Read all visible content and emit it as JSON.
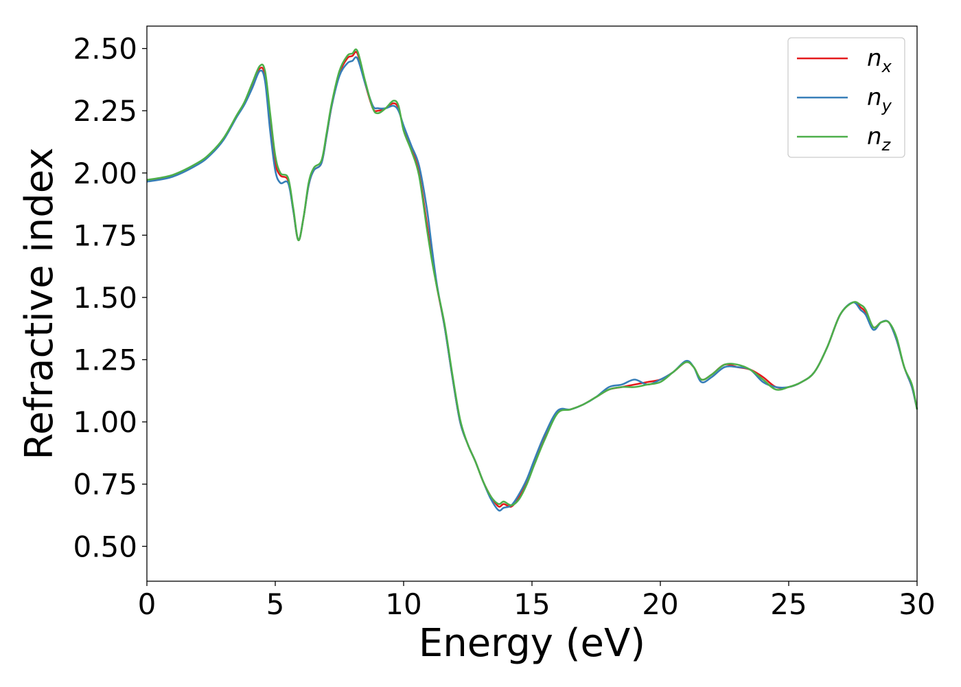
{
  "chart_data": {
    "type": "line",
    "xlabel": "Energy (eV)",
    "ylabel": "Refractive index",
    "xlim": [
      0,
      30
    ],
    "ylim": [
      0.36,
      2.59
    ],
    "xticks": [
      "0",
      "5",
      "10",
      "15",
      "20",
      "25",
      "30"
    ],
    "yticks": [
      "0.50",
      "0.75",
      "1.00",
      "1.25",
      "1.50",
      "1.75",
      "2.00",
      "2.25",
      "2.50"
    ],
    "grid": false,
    "legend_position": "top-right",
    "series": [
      {
        "name": "n",
        "subscript": "x",
        "color": "#e41a1c",
        "x": [
          0,
          1,
          2,
          2.5,
          3,
          3.5,
          3.8,
          4.1,
          4.4,
          4.6,
          4.8,
          5.0,
          5.2,
          5.5,
          5.7,
          5.9,
          6.1,
          6.3,
          6.5,
          6.8,
          7.0,
          7.2,
          7.5,
          7.8,
          8.0,
          8.2,
          8.5,
          8.8,
          9.0,
          9.3,
          9.6,
          9.8,
          10.0,
          10.3,
          10.6,
          10.9,
          11.1,
          11.3,
          11.6,
          11.9,
          12.2,
          12.5,
          12.8,
          13.1,
          13.4,
          13.7,
          13.9,
          14.2,
          14.5,
          14.8,
          15.1,
          15.5,
          16.0,
          16.5,
          17.0,
          17.5,
          18.0,
          18.5,
          19.0,
          19.5,
          20.0,
          20.5,
          21.0,
          21.3,
          21.6,
          22.0,
          22.5,
          23.0,
          23.5,
          24.0,
          24.5,
          25.0,
          25.5,
          26.0,
          26.5,
          27.0,
          27.5,
          27.8,
          28.0,
          28.3,
          28.6,
          28.9,
          29.2,
          29.5,
          29.8,
          30.0
        ],
        "values": [
          1.97,
          1.99,
          2.04,
          2.08,
          2.14,
          2.23,
          2.28,
          2.35,
          2.42,
          2.39,
          2.2,
          2.04,
          1.99,
          1.97,
          1.85,
          1.73,
          1.82,
          1.95,
          2.01,
          2.04,
          2.15,
          2.27,
          2.4,
          2.46,
          2.47,
          2.48,
          2.36,
          2.26,
          2.25,
          2.26,
          2.28,
          2.26,
          2.18,
          2.1,
          2.0,
          1.8,
          1.66,
          1.54,
          1.38,
          1.18,
          1.0,
          0.91,
          0.84,
          0.76,
          0.7,
          0.66,
          0.67,
          0.66,
          0.7,
          0.76,
          0.84,
          0.94,
          1.04,
          1.05,
          1.07,
          1.1,
          1.13,
          1.14,
          1.15,
          1.16,
          1.17,
          1.2,
          1.24,
          1.22,
          1.17,
          1.19,
          1.23,
          1.22,
          1.21,
          1.18,
          1.14,
          1.14,
          1.16,
          1.2,
          1.3,
          1.43,
          1.48,
          1.46,
          1.44,
          1.38,
          1.4,
          1.4,
          1.33,
          1.22,
          1.14,
          1.05
        ]
      },
      {
        "name": "n",
        "subscript": "y",
        "color": "#377eb8",
        "x": [
          0,
          1,
          2,
          2.5,
          3,
          3.5,
          3.8,
          4.1,
          4.4,
          4.6,
          4.8,
          5.0,
          5.2,
          5.5,
          5.7,
          5.9,
          6.1,
          6.3,
          6.5,
          6.8,
          7.0,
          7.2,
          7.5,
          7.8,
          8.0,
          8.2,
          8.5,
          8.8,
          9.0,
          9.3,
          9.6,
          9.8,
          10.0,
          10.3,
          10.6,
          10.9,
          11.1,
          11.3,
          11.6,
          11.9,
          12.2,
          12.5,
          12.8,
          13.1,
          13.4,
          13.7,
          13.9,
          14.2,
          14.5,
          14.8,
          15.1,
          15.5,
          16.0,
          16.5,
          17.0,
          17.5,
          18.0,
          18.5,
          19.0,
          19.5,
          20.0,
          20.5,
          21.0,
          21.3,
          21.6,
          22.0,
          22.5,
          23.0,
          23.5,
          24.0,
          24.5,
          25.0,
          25.5,
          26.0,
          26.5,
          27.0,
          27.5,
          27.8,
          28.0,
          28.3,
          28.6,
          28.9,
          29.2,
          29.5,
          29.8,
          30.0
        ],
        "values": [
          1.965,
          1.985,
          2.035,
          2.075,
          2.135,
          2.225,
          2.275,
          2.34,
          2.41,
          2.37,
          2.17,
          2.01,
          1.96,
          1.96,
          1.85,
          1.73,
          1.82,
          1.95,
          2.01,
          2.04,
          2.15,
          2.27,
          2.39,
          2.44,
          2.45,
          2.46,
          2.36,
          2.27,
          2.26,
          2.26,
          2.27,
          2.25,
          2.19,
          2.11,
          2.03,
          1.86,
          1.7,
          1.55,
          1.38,
          1.18,
          1.0,
          0.91,
          0.84,
          0.76,
          0.69,
          0.645,
          0.655,
          0.665,
          0.71,
          0.77,
          0.85,
          0.95,
          1.045,
          1.05,
          1.07,
          1.1,
          1.14,
          1.15,
          1.17,
          1.15,
          1.17,
          1.2,
          1.245,
          1.22,
          1.16,
          1.18,
          1.22,
          1.22,
          1.21,
          1.16,
          1.14,
          1.14,
          1.16,
          1.2,
          1.3,
          1.43,
          1.48,
          1.45,
          1.43,
          1.37,
          1.4,
          1.4,
          1.33,
          1.22,
          1.14,
          1.05
        ]
      },
      {
        "name": "n",
        "subscript": "z",
        "color": "#4daf4a",
        "x": [
          0,
          1,
          2,
          2.5,
          3,
          3.5,
          3.8,
          4.1,
          4.4,
          4.6,
          4.8,
          5.0,
          5.2,
          5.5,
          5.7,
          5.9,
          6.1,
          6.3,
          6.5,
          6.8,
          7.0,
          7.2,
          7.5,
          7.8,
          8.0,
          8.2,
          8.5,
          8.8,
          9.0,
          9.3,
          9.6,
          9.8,
          10.0,
          10.3,
          10.6,
          10.9,
          11.1,
          11.3,
          11.6,
          11.9,
          12.2,
          12.5,
          12.8,
          13.1,
          13.4,
          13.7,
          13.9,
          14.2,
          14.5,
          14.8,
          15.1,
          15.5,
          16.0,
          16.5,
          17.0,
          17.5,
          18.0,
          18.5,
          19.0,
          19.5,
          20.0,
          20.5,
          21.0,
          21.3,
          21.6,
          22.0,
          22.5,
          23.0,
          23.5,
          24.0,
          24.5,
          25.0,
          25.5,
          26.0,
          26.5,
          27.0,
          27.5,
          27.8,
          28.0,
          28.3,
          28.6,
          28.9,
          29.2,
          29.5,
          29.8,
          30.0
        ],
        "values": [
          1.972,
          1.992,
          2.042,
          2.082,
          2.142,
          2.232,
          2.285,
          2.36,
          2.43,
          2.41,
          2.24,
          2.07,
          2.0,
          1.98,
          1.86,
          1.73,
          1.82,
          1.96,
          2.02,
          2.05,
          2.16,
          2.28,
          2.41,
          2.47,
          2.48,
          2.49,
          2.37,
          2.26,
          2.24,
          2.26,
          2.29,
          2.27,
          2.17,
          2.09,
          1.99,
          1.78,
          1.65,
          1.54,
          1.39,
          1.19,
          1.01,
          0.91,
          0.84,
          0.76,
          0.7,
          0.67,
          0.68,
          0.665,
          0.69,
          0.75,
          0.83,
          0.93,
          1.035,
          1.05,
          1.07,
          1.1,
          1.13,
          1.14,
          1.14,
          1.15,
          1.16,
          1.2,
          1.24,
          1.22,
          1.17,
          1.19,
          1.23,
          1.23,
          1.21,
          1.17,
          1.13,
          1.14,
          1.16,
          1.2,
          1.3,
          1.43,
          1.48,
          1.47,
          1.45,
          1.38,
          1.4,
          1.4,
          1.34,
          1.22,
          1.15,
          1.05
        ]
      }
    ]
  }
}
